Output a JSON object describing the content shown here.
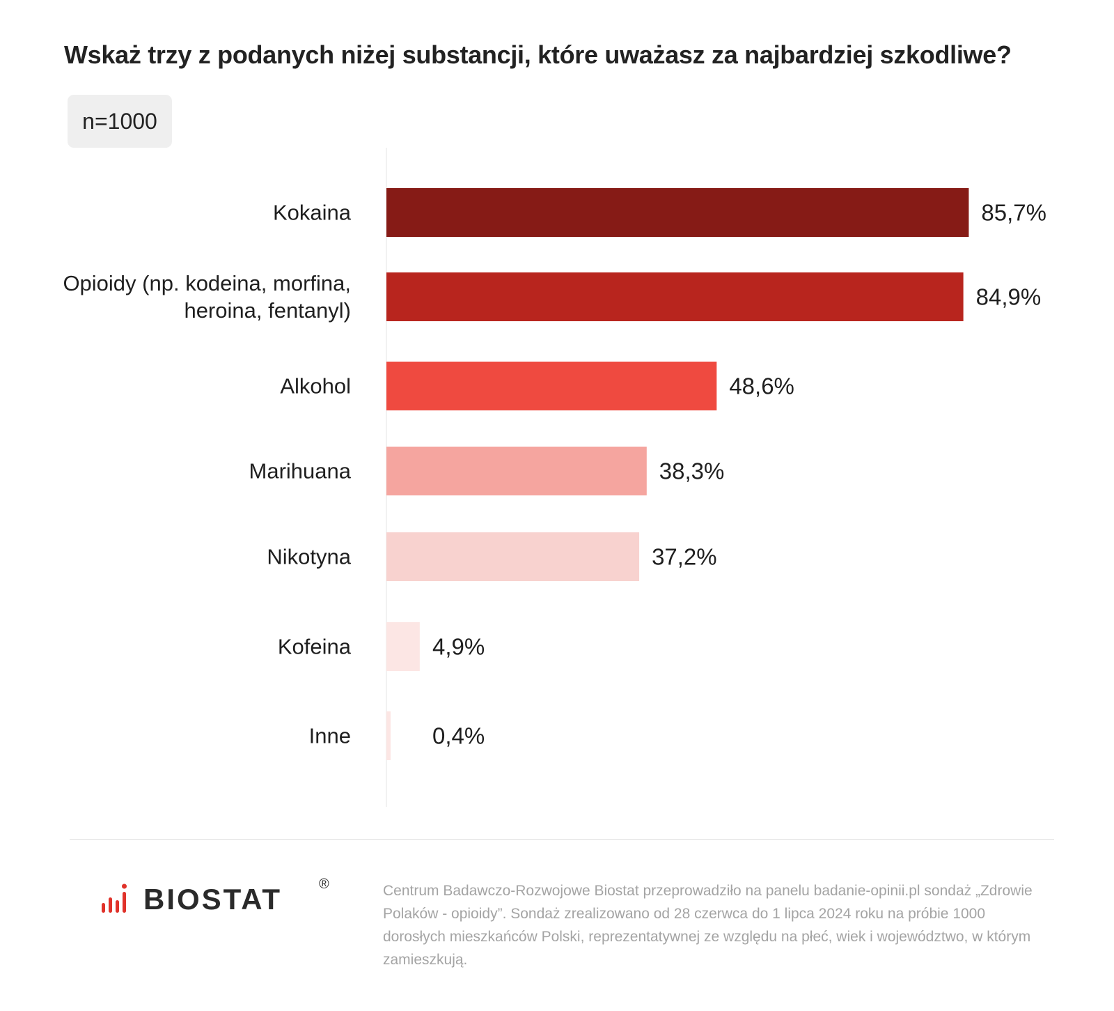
{
  "chart_data": {
    "type": "bar",
    "orientation": "horizontal",
    "title": "Wskaż trzy z podanych niżej substancji, które uważasz za najbardziej szkodliwe?",
    "sample_badge": "n=1000",
    "categories": [
      [
        "Kokaina"
      ],
      [
        "Opioidy (np. kodeina, morfina,",
        "heroina, fentanyl)"
      ],
      [
        "Alkohol"
      ],
      [
        "Marihuana"
      ],
      [
        "Nikotyna"
      ],
      [
        "Kofeina"
      ],
      [
        "Inne"
      ]
    ],
    "values": [
      85.7,
      84.9,
      48.6,
      38.3,
      37.2,
      4.9,
      0.4
    ],
    "value_labels": [
      "85,7%",
      "84,9%",
      "48,6%",
      "38,3%",
      "37,2%",
      "4,9%",
      "0,4%"
    ],
    "colors": [
      "#861b16",
      "#b8251e",
      "#ef4a40",
      "#f5a59f",
      "#f8d2cf",
      "#fce6e4",
      "#fce6e4"
    ],
    "xlim": [
      0,
      100
    ],
    "grid": false,
    "legend": "none"
  },
  "brand": {
    "name": "BIOSTAT",
    "registered": "®",
    "accent_color": "#e0322a"
  },
  "footnote": "Centrum Badawczo-Rozwojowe Biostat przeprowadziło na panelu badanie-opinii.pl sondaż „Zdrowie Polaków - opioidy”. Sondaż zrealizowano od 28 czerwca do 1 lipca 2024 roku na próbie 1000 dorosłych mieszkańców Polski, reprezentatywnej ze względu na płeć, wiek i województwo, w którym zamieszkują."
}
